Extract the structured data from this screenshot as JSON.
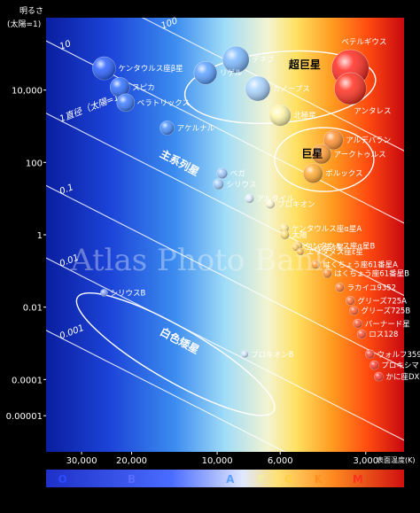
{
  "chart_data": {
    "type": "scatter",
    "title": "",
    "ylabel": "明るさ\n(太陽=1)",
    "xlabel": "表面温度(K)",
    "y_scale": "log",
    "x_scale": "log-reversed",
    "ylim": [
      1e-06,
      1000000
    ],
    "xlim": [
      40000,
      2200
    ],
    "y_ticks": [
      "10,000",
      "100",
      "1",
      "0.01",
      "0.0001",
      "0.00001"
    ],
    "y_tick_values": [
      10000,
      100,
      1,
      0.01,
      0.0001,
      1e-05
    ],
    "x_ticks": [
      "30,000",
      "20,000",
      "10,000",
      "6,000",
      "3,000"
    ],
    "x_tick_values": [
      30000,
      20000,
      10000,
      6000,
      3000
    ],
    "spectral_classes": [
      {
        "letter": "O",
        "color": "#2b4cff"
      },
      {
        "letter": "B",
        "color": "#5a6cff"
      },
      {
        "letter": "A",
        "color": "#5aa0ff"
      },
      {
        "letter": "F",
        "color": "#f0f0a0"
      },
      {
        "letter": "G",
        "color": "#ffd040"
      },
      {
        "letter": "K",
        "color": "#ff9020"
      },
      {
        "letter": "M",
        "color": "#ff3020"
      }
    ],
    "radius_lines": [
      {
        "label": "100",
        "radius": 100
      },
      {
        "label": "10",
        "radius": 10
      },
      {
        "label": "1直径（太陽=1）",
        "radius": 1
      },
      {
        "label": "0.1",
        "radius": 0.1
      },
      {
        "label": "0.01",
        "radius": 0.01
      },
      {
        "label": "0.001",
        "radius": 0.001
      }
    ],
    "regions": [
      {
        "label": "超巨星"
      },
      {
        "label": "巨星"
      },
      {
        "label": "主系列星"
      },
      {
        "label": "白色矮星"
      }
    ],
    "stars": [
      {
        "name": "ケンタウルス座β星",
        "T": 25000,
        "L": 40000,
        "size": 13,
        "color": "#2a60ff"
      },
      {
        "name": "スピカ",
        "T": 22000,
        "L": 12000,
        "size": 11,
        "color": "#3070ff"
      },
      {
        "name": "ベラトリックス",
        "T": 21000,
        "L": 4500,
        "size": 10,
        "color": "#3a7bff"
      },
      {
        "name": "アケルナル",
        "T": 15000,
        "L": 900,
        "size": 8,
        "color": "#4a90ff"
      },
      {
        "name": "デネブ",
        "T": 8600,
        "L": 70000,
        "size": 15,
        "color": "#7ab8ff"
      },
      {
        "name": "リゲル",
        "T": 11000,
        "L": 30000,
        "size": 13,
        "color": "#5aa0ff"
      },
      {
        "name": "カノープス",
        "T": 7200,
        "L": 11000,
        "size": 14,
        "color": "#a8d4ff"
      },
      {
        "name": "北極星",
        "T": 6000,
        "L": 2000,
        "size": 12,
        "color": "#fff6a8"
      },
      {
        "name": "ベテルギウス",
        "T": 3400,
        "L": 40000,
        "size": 21,
        "color": "#ff2a20"
      },
      {
        "name": "アンタレス",
        "T": 3400,
        "L": 11000,
        "size": 18,
        "color": "#ff3020"
      },
      {
        "name": "アルデバラン",
        "T": 3900,
        "L": 420,
        "size": 11,
        "color": "#ff9030"
      },
      {
        "name": "アークトゥルス",
        "T": 4300,
        "L": 170,
        "size": 11,
        "color": "#ff9a30"
      },
      {
        "name": "ポルックス",
        "T": 4600,
        "L": 50,
        "size": 11,
        "color": "#ffaa30"
      },
      {
        "name": "ベガ",
        "T": 9600,
        "L": 50,
        "size": 6,
        "color": "#9cc8ff"
      },
      {
        "name": "シリウス",
        "T": 9900,
        "L": 25,
        "size": 6,
        "color": "#a0ccff"
      },
      {
        "name": "アルタイル",
        "T": 7700,
        "L": 10,
        "size": 5,
        "color": "#dff0ff"
      },
      {
        "name": "プロキオン",
        "T": 6500,
        "L": 7,
        "size": 5,
        "color": "#fff8d0"
      },
      {
        "name": "ケンタウルス座α星A",
        "T": 5800,
        "L": 1.5,
        "size": 5,
        "color": "#ffe890"
      },
      {
        "name": "太陽",
        "T": 5780,
        "L": 1,
        "size": 5,
        "color": "#ffe070"
      },
      {
        "name": "ケンタウルス座α星B",
        "T": 5200,
        "L": 0.5,
        "size": 5,
        "color": "#ffd060"
      },
      {
        "name": "くじら座τ星",
        "T": 5300,
        "L": 0.45,
        "size": 4,
        "color": "#ffd060"
      },
      {
        "name": "エリダヌス座ε星",
        "T": 5100,
        "L": 0.34,
        "size": 4,
        "color": "#ffc050"
      },
      {
        "name": "はくちょう座61番星A",
        "T": 4500,
        "L": 0.15,
        "size": 5,
        "color": "#ffa030"
      },
      {
        "name": "はくちょう座61番星B",
        "T": 4100,
        "L": 0.085,
        "size": 5,
        "color": "#ff9030"
      },
      {
        "name": "ラカイユ9352",
        "T": 3700,
        "L": 0.035,
        "size": 5,
        "color": "#ff7a30"
      },
      {
        "name": "グリーズ725A",
        "T": 3400,
        "L": 0.015,
        "size": 5,
        "color": "#ff6a30"
      },
      {
        "name": "グリーズ725B",
        "T": 3300,
        "L": 0.008,
        "size": 5,
        "color": "#ff6030"
      },
      {
        "name": "バーナード星",
        "T": 3200,
        "L": 0.0035,
        "size": 5,
        "color": "#ff5530"
      },
      {
        "name": "ロス128",
        "T": 3100,
        "L": 0.0018,
        "size": 5,
        "color": "#ff5030"
      },
      {
        "name": "ウォルフ359",
        "T": 2900,
        "L": 0.0005,
        "size": 5,
        "color": "#ff4530"
      },
      {
        "name": "プロキシマ",
        "T": 2800,
        "L": 0.00025,
        "size": 5,
        "color": "#ff4030"
      },
      {
        "name": "かに座DX星",
        "T": 2700,
        "L": 0.00012,
        "size": 5,
        "color": "#ff3a30"
      },
      {
        "name": "シリウスB",
        "T": 25000,
        "L": 0.025,
        "size": 4,
        "color": "#8aa8ff"
      },
      {
        "name": "プロキオンB",
        "T": 8000,
        "L": 0.0005,
        "size": 4,
        "color": "#d0e4ff"
      }
    ]
  },
  "watermark": "Atlas Photo Bank"
}
